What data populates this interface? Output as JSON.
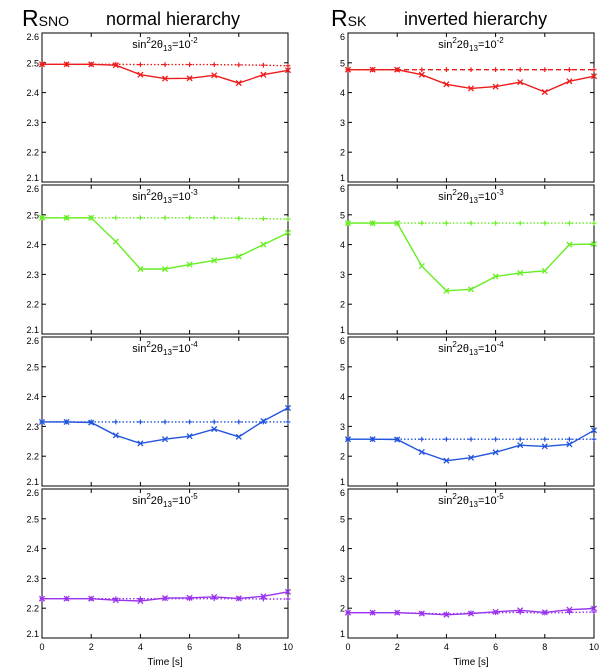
{
  "figure": {
    "left_ylabel": {
      "main": "R",
      "sub": "SNO"
    },
    "right_ylabel": {
      "main": "R",
      "sub": "SK"
    },
    "left_title": "normal hierarchy",
    "right_title": "inverted hierarchy",
    "xlabel": "Time [s]"
  },
  "chart_data": [
    {
      "type": "line",
      "column": "normal hierarchy",
      "row": 1,
      "annotation": {
        "prefix": "sin",
        "sup1": "2",
        "mid": "2θ",
        "sub": "13",
        "eq": "=10",
        "sup2": "-2"
      },
      "color": "#ee1c1c",
      "x": [
        0,
        1,
        2,
        3,
        4,
        5,
        6,
        7,
        8,
        9,
        10
      ],
      "xlim": [
        0,
        10
      ],
      "xticks": [
        0,
        2,
        4,
        6,
        8,
        10
      ],
      "ylim": [
        2.1,
        2.6
      ],
      "yticks": [
        "2.1",
        "2.2",
        "2.3",
        "2.4",
        "2.5",
        "2.6"
      ],
      "series": [
        {
          "style": "dotted",
          "marker": "plus",
          "values": [
            2.495,
            2.495,
            2.495,
            2.495,
            2.494,
            2.494,
            2.494,
            2.494,
            2.493,
            2.492,
            2.49
          ]
        },
        {
          "style": "solid",
          "marker": "x",
          "values": [
            2.495,
            2.495,
            2.495,
            2.492,
            2.46,
            2.447,
            2.448,
            2.458,
            2.432,
            2.46,
            2.475
          ]
        }
      ]
    },
    {
      "type": "line",
      "column": "normal hierarchy",
      "row": 2,
      "annotation": {
        "prefix": "sin",
        "sup1": "2",
        "mid": "2θ",
        "sub": "13",
        "eq": "=10",
        "sup2": "-3"
      },
      "color": "#66ee22",
      "x": [
        0,
        1,
        2,
        3,
        4,
        5,
        6,
        7,
        8,
        9,
        10
      ],
      "xlim": [
        0,
        10
      ],
      "xticks": [
        0,
        2,
        4,
        6,
        8,
        10
      ],
      "ylim": [
        2.1,
        2.6
      ],
      "yticks": [
        "2.1",
        "2.2",
        "2.3",
        "2.4",
        "2.5",
        "2.6"
      ],
      "series": [
        {
          "style": "dotted",
          "marker": "plus",
          "values": [
            2.49,
            2.49,
            2.49,
            2.49,
            2.49,
            2.49,
            2.49,
            2.49,
            2.488,
            2.487,
            2.486
          ]
        },
        {
          "style": "solid",
          "marker": "x",
          "values": [
            2.49,
            2.49,
            2.49,
            2.41,
            2.318,
            2.318,
            2.333,
            2.347,
            2.36,
            2.4,
            2.44
          ]
        }
      ]
    },
    {
      "type": "line",
      "column": "normal hierarchy",
      "row": 3,
      "annotation": {
        "prefix": "sin",
        "sup1": "2",
        "mid": "2θ",
        "sub": "13",
        "eq": "=10",
        "sup2": "-4"
      },
      "color": "#2255dd",
      "x": [
        0,
        1,
        2,
        3,
        4,
        5,
        6,
        7,
        8,
        9,
        10
      ],
      "xlim": [
        0,
        10
      ],
      "xticks": [
        0,
        2,
        4,
        6,
        8,
        10
      ],
      "ylim": [
        2.1,
        2.6
      ],
      "yticks": [
        "2.1",
        "2.2",
        "2.3",
        "2.4",
        "2.5",
        "2.6"
      ],
      "series": [
        {
          "style": "dotted",
          "marker": "plus",
          "values": [
            2.315,
            2.315,
            2.315,
            2.315,
            2.315,
            2.315,
            2.315,
            2.315,
            2.315,
            2.315,
            2.315
          ]
        },
        {
          "style": "solid",
          "marker": "x",
          "values": [
            2.315,
            2.315,
            2.313,
            2.27,
            2.243,
            2.257,
            2.267,
            2.291,
            2.265,
            2.318,
            2.362
          ]
        }
      ]
    },
    {
      "type": "line",
      "column": "normal hierarchy",
      "row": 4,
      "annotation": {
        "prefix": "sin",
        "sup1": "2",
        "mid": "2θ",
        "sub": "13",
        "eq": "=10",
        "sup2": "-5"
      },
      "color": "#9933ee",
      "x": [
        0,
        1,
        2,
        3,
        4,
        5,
        6,
        7,
        8,
        9,
        10
      ],
      "xlim": [
        0,
        10
      ],
      "xticks": [
        0,
        2,
        4,
        6,
        8,
        10
      ],
      "ylim": [
        2.1,
        2.6
      ],
      "yticks": [
        "2.1",
        "2.2",
        "2.3",
        "2.4",
        "2.5",
        "2.6"
      ],
      "series": [
        {
          "style": "dotted",
          "marker": "plus",
          "values": [
            2.232,
            2.232,
            2.232,
            2.232,
            2.232,
            2.232,
            2.232,
            2.232,
            2.232,
            2.231,
            2.231
          ]
        },
        {
          "style": "solid",
          "marker": "x",
          "values": [
            2.232,
            2.232,
            2.232,
            2.227,
            2.224,
            2.234,
            2.235,
            2.238,
            2.233,
            2.24,
            2.255
          ]
        }
      ]
    },
    {
      "type": "line",
      "column": "inverted hierarchy",
      "row": 1,
      "annotation": {
        "prefix": "sin",
        "sup1": "2",
        "mid": "2θ",
        "sub": "13",
        "eq": "=10",
        "sup2": "-2"
      },
      "color": "#ee1c1c",
      "x": [
        0,
        1,
        2,
        3,
        4,
        5,
        6,
        7,
        8,
        9,
        10
      ],
      "xlim": [
        0,
        10
      ],
      "xticks": [
        0,
        2,
        4,
        6,
        8,
        10
      ],
      "ylim": [
        1,
        6
      ],
      "yticks": [
        "1",
        "2",
        "3",
        "4",
        "5",
        "6"
      ],
      "series": [
        {
          "style": "dashed",
          "marker": "plus",
          "values": [
            4.77,
            4.77,
            4.77,
            4.77,
            4.77,
            4.77,
            4.77,
            4.77,
            4.77,
            4.77,
            4.77
          ]
        },
        {
          "style": "solid",
          "marker": "x",
          "values": [
            4.77,
            4.77,
            4.77,
            4.6,
            4.28,
            4.14,
            4.2,
            4.35,
            4.02,
            4.38,
            4.55
          ]
        }
      ]
    },
    {
      "type": "line",
      "column": "inverted hierarchy",
      "row": 2,
      "annotation": {
        "prefix": "sin",
        "sup1": "2",
        "mid": "2θ",
        "sub": "13",
        "eq": "=10",
        "sup2": "-3"
      },
      "color": "#66ee22",
      "x": [
        0,
        1,
        2,
        3,
        4,
        5,
        6,
        7,
        8,
        9,
        10
      ],
      "xlim": [
        0,
        10
      ],
      "xticks": [
        0,
        2,
        4,
        6,
        8,
        10
      ],
      "ylim": [
        1,
        6
      ],
      "yticks": [
        "1",
        "2",
        "3",
        "4",
        "5",
        "6"
      ],
      "series": [
        {
          "style": "dotted",
          "marker": "plus",
          "values": [
            4.72,
            4.72,
            4.72,
            4.72,
            4.72,
            4.72,
            4.72,
            4.72,
            4.72,
            4.72,
            4.72
          ]
        },
        {
          "style": "solid",
          "marker": "x",
          "values": [
            4.72,
            4.72,
            4.72,
            3.28,
            2.45,
            2.5,
            2.93,
            3.05,
            3.12,
            4.0,
            4.02
          ]
        }
      ]
    },
    {
      "type": "line",
      "column": "inverted hierarchy",
      "row": 3,
      "annotation": {
        "prefix": "sin",
        "sup1": "2",
        "mid": "2θ",
        "sub": "13",
        "eq": "=10",
        "sup2": "-4"
      },
      "color": "#2255dd",
      "x": [
        0,
        1,
        2,
        3,
        4,
        5,
        6,
        7,
        8,
        9,
        10
      ],
      "xlim": [
        0,
        10
      ],
      "xticks": [
        0,
        2,
        4,
        6,
        8,
        10
      ],
      "ylim": [
        1,
        6
      ],
      "yticks": [
        "1",
        "2",
        "3",
        "4",
        "5",
        "6"
      ],
      "series": [
        {
          "style": "dotted",
          "marker": "plus",
          "values": [
            2.57,
            2.57,
            2.57,
            2.57,
            2.57,
            2.57,
            2.57,
            2.57,
            2.57,
            2.57,
            2.57
          ]
        },
        {
          "style": "solid",
          "marker": "x",
          "values": [
            2.57,
            2.57,
            2.56,
            2.14,
            1.85,
            1.95,
            2.13,
            2.37,
            2.33,
            2.4,
            2.87
          ]
        }
      ]
    },
    {
      "type": "line",
      "column": "inverted hierarchy",
      "row": 4,
      "annotation": {
        "prefix": "sin",
        "sup1": "2",
        "mid": "2θ",
        "sub": "13",
        "eq": "=10",
        "sup2": "-5"
      },
      "color": "#9933ee",
      "x": [
        0,
        1,
        2,
        3,
        4,
        5,
        6,
        7,
        8,
        9,
        10
      ],
      "xlim": [
        0,
        10
      ],
      "xticks": [
        0,
        2,
        4,
        6,
        8,
        10
      ],
      "ylim": [
        1,
        6
      ],
      "yticks": [
        "1",
        "2",
        "3",
        "4",
        "5",
        "6"
      ],
      "series": [
        {
          "style": "dotted",
          "marker": "plus",
          "values": [
            1.85,
            1.85,
            1.85,
            1.83,
            1.81,
            1.84,
            1.85,
            1.86,
            1.84,
            1.86,
            1.87
          ]
        },
        {
          "style": "solid",
          "marker": "x",
          "values": [
            1.85,
            1.85,
            1.85,
            1.82,
            1.78,
            1.82,
            1.88,
            1.93,
            1.86,
            1.95,
            1.99
          ]
        }
      ]
    }
  ]
}
